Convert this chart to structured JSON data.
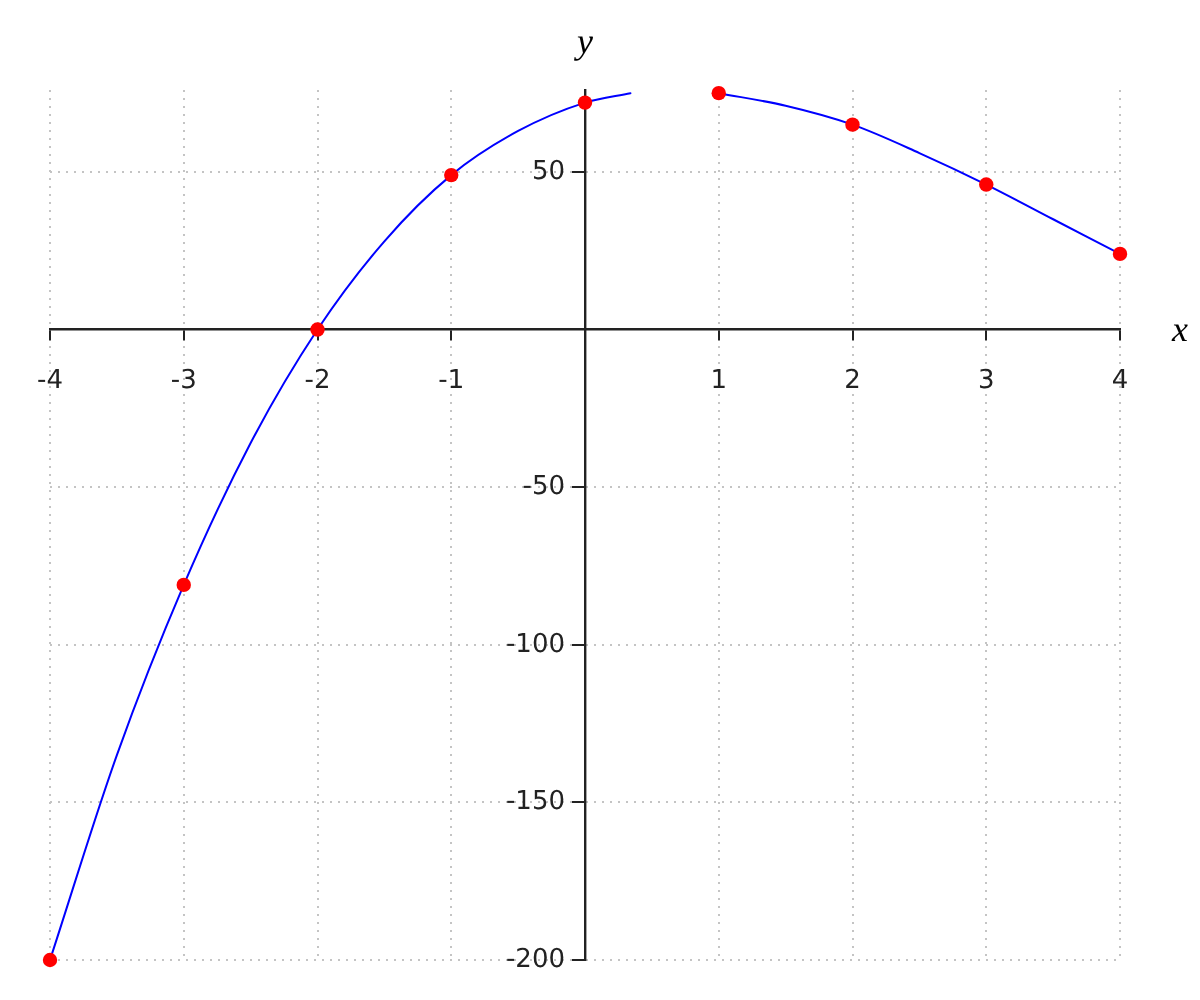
{
  "chart_data": {
    "type": "line",
    "xlabel": "x",
    "ylabel": "y",
    "xlim": [
      -4,
      4
    ],
    "ylim": [
      -200,
      76
    ],
    "xticks": [
      -4,
      -3,
      -2,
      -1,
      1,
      2,
      3,
      4
    ],
    "yticks": [
      -200,
      -150,
      -100,
      -50,
      50
    ],
    "grid": true,
    "series": [
      {
        "color": "#0000ff",
        "x": [
          -4,
          -3.5,
          -3,
          -2.5,
          -2,
          -1.5,
          -1,
          -0.5,
          0,
          0.34
        ],
        "values": [
          -200,
          -135,
          -81,
          -36,
          0,
          28,
          49,
          63,
          72,
          75
        ]
      },
      {
        "color": "#0000ff",
        "x": [
          1,
          1.5,
          2,
          2.5,
          3,
          3.5,
          4
        ],
        "values": [
          75,
          71,
          65,
          56,
          46,
          35,
          24
        ]
      },
      {
        "type": "scatter",
        "color": "#ff0000",
        "marker": "circle",
        "x": [
          -4,
          -3,
          -2,
          -1,
          0,
          1,
          2,
          3,
          4
        ],
        "values": [
          -200,
          -81,
          0,
          49,
          72,
          75,
          65,
          46,
          24
        ]
      }
    ]
  }
}
